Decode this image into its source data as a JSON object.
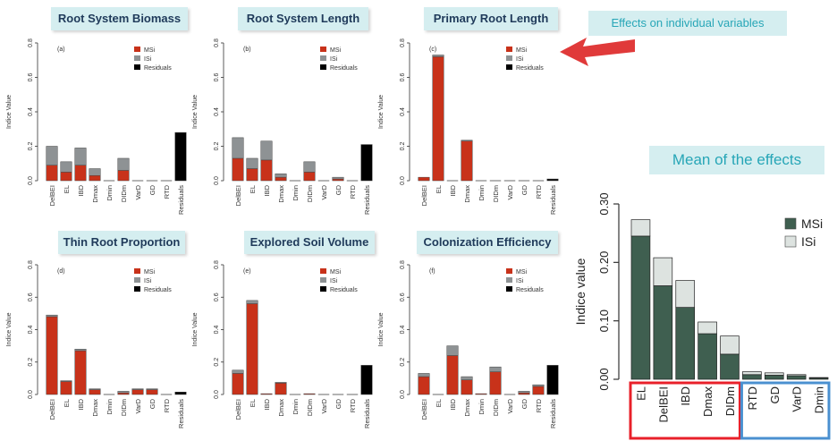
{
  "callout": {
    "text": "Effects on individual variables"
  },
  "mean_title": "Mean of the effects",
  "panel_titles": [
    "Root System Biomass",
    "Root System Length",
    "Primary Root Length",
    "Thin Root Proportion",
    "Explored Soil Volume",
    "Colonization Efficiency"
  ],
  "colors": {
    "msi": "#c8321a",
    "isi": "#8e9294",
    "residuals": "#000000",
    "mean_msi": "#3f5f50",
    "mean_isi": "#dde3e0",
    "arrow": "#e03a3a",
    "red_box": "#e8202a",
    "blue_box": "#4a90d0",
    "banner_bg": "#d5eef0"
  },
  "chart_data": [
    {
      "type": "bar",
      "stacked": true,
      "panel_label": "(a)",
      "title": "Root System Biomass",
      "ylabel": "Indice Value",
      "ylim": [
        0,
        0.8
      ],
      "yticks": [
        "0.0",
        "0.2",
        "0.4",
        "0.6",
        "0.8"
      ],
      "categories": [
        "DelBEI",
        "EL",
        "IBD",
        "Dmax",
        "Dmin",
        "DIDm",
        "VarD",
        "GD",
        "RTD",
        "Residuals"
      ],
      "series": [
        {
          "name": "MSi",
          "values": [
            0.09,
            0.05,
            0.09,
            0.03,
            0.0,
            0.06,
            0.0,
            0.0,
            0.0,
            0.0
          ]
        },
        {
          "name": "ISi",
          "values": [
            0.11,
            0.06,
            0.1,
            0.04,
            0.0,
            0.07,
            0.0,
            0.0,
            0.0,
            0.0
          ]
        },
        {
          "name": "Residuals",
          "values": [
            0,
            0,
            0,
            0,
            0,
            0,
            0,
            0,
            0,
            0.28
          ]
        }
      ],
      "legend": [
        "MSi",
        "ISi",
        "Residuals"
      ]
    },
    {
      "type": "bar",
      "stacked": true,
      "panel_label": "(b)",
      "title": "Root System Length",
      "ylabel": "Indice Value",
      "ylim": [
        0,
        0.8
      ],
      "yticks": [
        "0.0",
        "0.2",
        "0.4",
        "0.6",
        "0.8"
      ],
      "categories": [
        "DelBEI",
        "EL",
        "IBD",
        "Dmax",
        "Dmin",
        "DIDm",
        "VarD",
        "GD",
        "RTD",
        "Residuals"
      ],
      "series": [
        {
          "name": "MSi",
          "values": [
            0.13,
            0.07,
            0.12,
            0.02,
            0.0,
            0.05,
            0.0,
            0.01,
            0.0,
            0.0
          ]
        },
        {
          "name": "ISi",
          "values": [
            0.12,
            0.06,
            0.11,
            0.02,
            0.0,
            0.06,
            0.0,
            0.01,
            0.0,
            0.0
          ]
        },
        {
          "name": "Residuals",
          "values": [
            0,
            0,
            0,
            0,
            0,
            0,
            0,
            0,
            0,
            0.21
          ]
        }
      ],
      "legend": [
        "MSi",
        "ISi",
        "Residuals"
      ]
    },
    {
      "type": "bar",
      "stacked": true,
      "panel_label": "(c)",
      "title": "Primary Root Length",
      "ylabel": "Indice Value",
      "ylim": [
        0,
        0.8
      ],
      "yticks": [
        "0.0",
        "0.2",
        "0.4",
        "0.6",
        "0.8"
      ],
      "categories": [
        "DelBEI",
        "EL",
        "IBD",
        "Dmax",
        "Dmin",
        "DIDm",
        "VarD",
        "GD",
        "RTD",
        "Residuals"
      ],
      "series": [
        {
          "name": "MSi",
          "values": [
            0.02,
            0.72,
            0.0,
            0.23,
            0.0,
            0.0,
            0.0,
            0.0,
            0.0,
            0.0
          ]
        },
        {
          "name": "ISi",
          "values": [
            0.0,
            0.01,
            0.0,
            0.005,
            0.0,
            0.0,
            0.0,
            0.0,
            0.0,
            0.0
          ]
        },
        {
          "name": "Residuals",
          "values": [
            0,
            0,
            0,
            0,
            0,
            0,
            0,
            0,
            0,
            0.01
          ]
        }
      ],
      "legend": [
        "MSi",
        "ISi",
        "Residuals"
      ]
    },
    {
      "type": "bar",
      "stacked": true,
      "panel_label": "(d)",
      "title": "Thin Root Proportion",
      "ylabel": "Indice Value",
      "ylim": [
        0,
        0.8
      ],
      "yticks": [
        "0.0",
        "0.2",
        "0.4",
        "0.6",
        "0.8"
      ],
      "categories": [
        "DelBEI",
        "EL",
        "IBD",
        "Dmax",
        "Dmin",
        "DIDm",
        "VarD",
        "GD",
        "RTD",
        "Residuals"
      ],
      "series": [
        {
          "name": "MSi",
          "values": [
            0.48,
            0.08,
            0.27,
            0.03,
            0.0,
            0.01,
            0.03,
            0.03,
            0.0,
            0.0
          ]
        },
        {
          "name": "ISi",
          "values": [
            0.01,
            0.005,
            0.01,
            0.005,
            0.0,
            0.01,
            0.005,
            0.005,
            0.0,
            0.0
          ]
        },
        {
          "name": "Residuals",
          "values": [
            0,
            0,
            0,
            0,
            0,
            0,
            0,
            0,
            0,
            0.015
          ]
        }
      ],
      "legend": [
        "MSi",
        "ISi",
        "Residuals"
      ]
    },
    {
      "type": "bar",
      "stacked": true,
      "panel_label": "(e)",
      "title": "Explored Soil Volume",
      "ylabel": "Indice Value",
      "ylim": [
        0,
        0.8
      ],
      "yticks": [
        "0.0",
        "0.2",
        "0.4",
        "0.6",
        "0.8"
      ],
      "categories": [
        "DelBEI",
        "EL",
        "IBD",
        "Dmax",
        "Dmin",
        "DIDm",
        "VarD",
        "GD",
        "RTD",
        "Residuals"
      ],
      "series": [
        {
          "name": "MSi",
          "values": [
            0.13,
            0.56,
            0.005,
            0.07,
            0.0,
            0.005,
            0.0,
            0.0,
            0.0,
            0.0
          ]
        },
        {
          "name": "ISi",
          "values": [
            0.02,
            0.02,
            0.0,
            0.005,
            0.0,
            0.0,
            0.0,
            0.0,
            0.0,
            0.0
          ]
        },
        {
          "name": "Residuals",
          "values": [
            0,
            0,
            0,
            0,
            0,
            0,
            0,
            0,
            0,
            0.18
          ]
        }
      ],
      "legend": [
        "MSi",
        "ISi",
        "Residuals"
      ]
    },
    {
      "type": "bar",
      "stacked": true,
      "panel_label": "(f)",
      "title": "Colonization Efficiency",
      "ylabel": "Indice Value",
      "ylim": [
        0,
        0.8
      ],
      "yticks": [
        "0.0",
        "0.2",
        "0.4",
        "0.6",
        "0.8"
      ],
      "categories": [
        "DelBEI",
        "EL",
        "IBD",
        "Dmax",
        "Dmin",
        "DIDm",
        "VarD",
        "GD",
        "RTD",
        "Residuals"
      ],
      "series": [
        {
          "name": "MSi",
          "values": [
            0.11,
            0.0,
            0.24,
            0.09,
            0.005,
            0.14,
            0.0,
            0.01,
            0.05,
            0.0
          ]
        },
        {
          "name": "ISi",
          "values": [
            0.02,
            0.0,
            0.06,
            0.02,
            0.0,
            0.03,
            0.0,
            0.01,
            0.01,
            0.0
          ]
        },
        {
          "name": "Residuals",
          "values": [
            0,
            0,
            0,
            0,
            0,
            0,
            0,
            0,
            0,
            0.18
          ]
        }
      ],
      "legend": [
        "MSi",
        "ISi",
        "Residuals"
      ]
    },
    {
      "type": "bar",
      "stacked": true,
      "title": "Mean of the effects",
      "ylabel": "Indice value",
      "ylim": [
        0,
        0.3
      ],
      "yticks": [
        "0.00",
        "0.10",
        "0.20",
        "0.30"
      ],
      "categories": [
        "EL",
        "DelBEI",
        "IBD",
        "Dmax",
        "DIDm",
        "RTD",
        "GD",
        "VarD",
        "Dmin"
      ],
      "series": [
        {
          "name": "MSi",
          "values": [
            0.245,
            0.16,
            0.123,
            0.078,
            0.043,
            0.008,
            0.007,
            0.006,
            0.002
          ]
        },
        {
          "name": "ISi",
          "values": [
            0.028,
            0.048,
            0.046,
            0.02,
            0.031,
            0.005,
            0.004,
            0.002,
            0.001
          ]
        }
      ],
      "legend": [
        "MSi",
        "ISi"
      ],
      "group_boxes": [
        {
          "categories": [
            "EL",
            "DelBEI",
            "IBD",
            "Dmax",
            "DIDm"
          ],
          "color": "red"
        },
        {
          "categories": [
            "RTD",
            "GD",
            "VarD",
            "Dmin"
          ],
          "color": "blue"
        }
      ]
    }
  ]
}
